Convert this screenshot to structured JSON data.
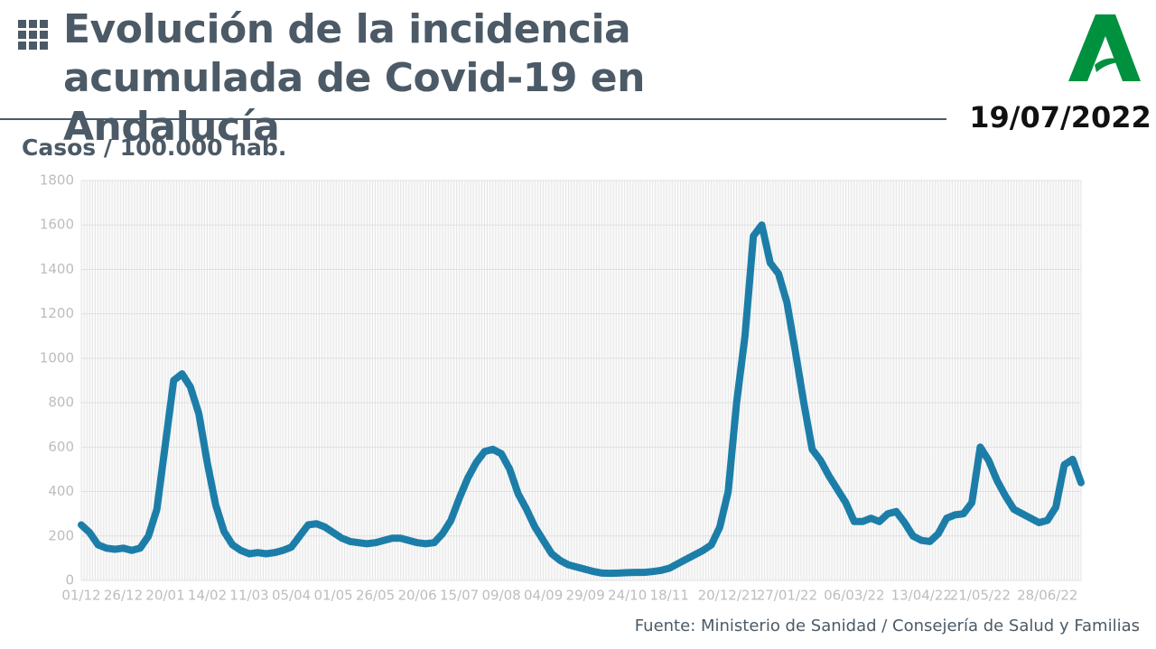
{
  "chart_data": {
    "type": "line",
    "title": "Evolución de la incidencia acumulada de Covid-19 en Andalucía",
    "date": "19/07/2022",
    "y_label": "Casos / 100.000 hab.",
    "source": "Fuente: Ministerio de Sanidad / Consejería de Salud y Familias",
    "color": "#1c7ea8",
    "grid": true,
    "ylim": [
      0,
      1800
    ],
    "yticks": [
      0,
      200,
      400,
      600,
      800,
      1000,
      1200,
      1400,
      1600,
      1800
    ],
    "categories": [
      "01/12",
      null,
      null,
      null,
      null,
      "26/12",
      null,
      null,
      null,
      null,
      "20/01",
      null,
      null,
      null,
      null,
      "14/02",
      null,
      null,
      null,
      null,
      "11/03",
      null,
      null,
      null,
      null,
      "05/04",
      null,
      null,
      null,
      null,
      "01/05",
      null,
      null,
      null,
      null,
      "26/05",
      null,
      null,
      null,
      null,
      "20/06",
      null,
      null,
      null,
      null,
      "15/07",
      null,
      null,
      null,
      null,
      "09/08",
      null,
      null,
      null,
      null,
      "04/09",
      null,
      null,
      null,
      null,
      "29/09",
      null,
      null,
      null,
      null,
      "24/10",
      null,
      null,
      null,
      null,
      "18/11",
      null,
      null,
      null,
      null,
      null,
      null,
      "20/12/21",
      null,
      null,
      null,
      null,
      null,
      null,
      "27/01/22",
      null,
      null,
      null,
      null,
      null,
      null,
      null,
      "06/03/22",
      null,
      null,
      null,
      null,
      null,
      null,
      null,
      "13/04/22",
      null,
      null,
      null,
      null,
      null,
      null,
      "21/05/22",
      null,
      null,
      null,
      null,
      null,
      null,
      null,
      "28/06/22",
      null,
      null,
      null,
      null
    ],
    "values": [
      250,
      215,
      160,
      145,
      140,
      145,
      135,
      145,
      200,
      320,
      610,
      900,
      930,
      870,
      750,
      530,
      340,
      220,
      160,
      135,
      120,
      125,
      120,
      125,
      135,
      150,
      200,
      250,
      255,
      240,
      215,
      190,
      175,
      170,
      165,
      170,
      180,
      190,
      190,
      180,
      170,
      165,
      170,
      210,
      270,
      370,
      460,
      530,
      580,
      590,
      570,
      500,
      390,
      320,
      240,
      180,
      120,
      90,
      70,
      60,
      50,
      40,
      33,
      32,
      33,
      35,
      36,
      36,
      40,
      45,
      55,
      75,
      95,
      115,
      135,
      160,
      240,
      400,
      800,
      1100,
      1550,
      1600,
      1430,
      1380,
      1250,
      1030,
      800,
      590,
      540,
      470,
      410,
      350,
      265,
      265,
      280,
      265,
      300,
      310,
      260,
      200,
      180,
      175,
      210,
      280,
      295,
      300,
      350,
      600,
      540,
      450,
      380,
      320,
      300,
      280,
      260,
      270,
      330,
      520,
      545,
      440
    ]
  }
}
